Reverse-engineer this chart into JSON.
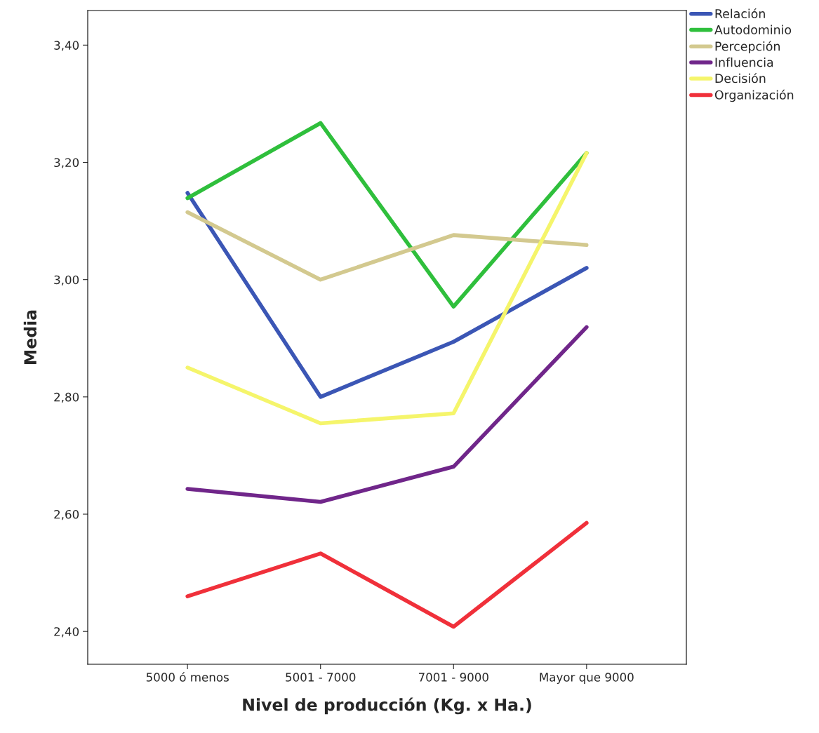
{
  "chart_data": {
    "type": "line",
    "xlabel": "Nivel de producción (Kg. x Ha.)",
    "ylabel": "Media",
    "categories": [
      "5000 ó menos",
      "5001 - 7000",
      "7001 - 9000",
      "Mayor que 9000"
    ],
    "series": [
      {
        "name": "Relación",
        "color": "#3b56b5",
        "values": [
          3.148,
          2.8,
          2.894,
          3.02
        ]
      },
      {
        "name": "Autodominio",
        "color": "#2fbf3c",
        "values": [
          3.139,
          3.267,
          2.954,
          3.216
        ]
      },
      {
        "name": "Percepción",
        "color": "#d3c98f",
        "values": [
          3.115,
          3.0,
          3.076,
          3.059
        ]
      },
      {
        "name": "Influencia",
        "color": "#70268a",
        "values": [
          2.643,
          2.621,
          2.681,
          2.919
        ]
      },
      {
        "name": "Decisión",
        "color": "#f5f56b",
        "values": [
          2.85,
          2.755,
          2.772,
          3.216
        ]
      },
      {
        "name": "Organización",
        "color": "#f0303a",
        "values": [
          2.46,
          2.533,
          2.408,
          2.585
        ]
      }
    ],
    "ylim": [
      2.344,
      3.459
    ],
    "yticks": [
      {
        "value": 2.4,
        "label": "2,40"
      },
      {
        "value": 2.6,
        "label": "2,60"
      },
      {
        "value": 2.8,
        "label": "2,80"
      },
      {
        "value": 3.0,
        "label": "3,00"
      },
      {
        "value": 3.2,
        "label": "3,20"
      },
      {
        "value": 3.4,
        "label": "3,40"
      }
    ],
    "legend": "top right",
    "grid": false,
    "marker": "none",
    "line_style": "solid"
  }
}
